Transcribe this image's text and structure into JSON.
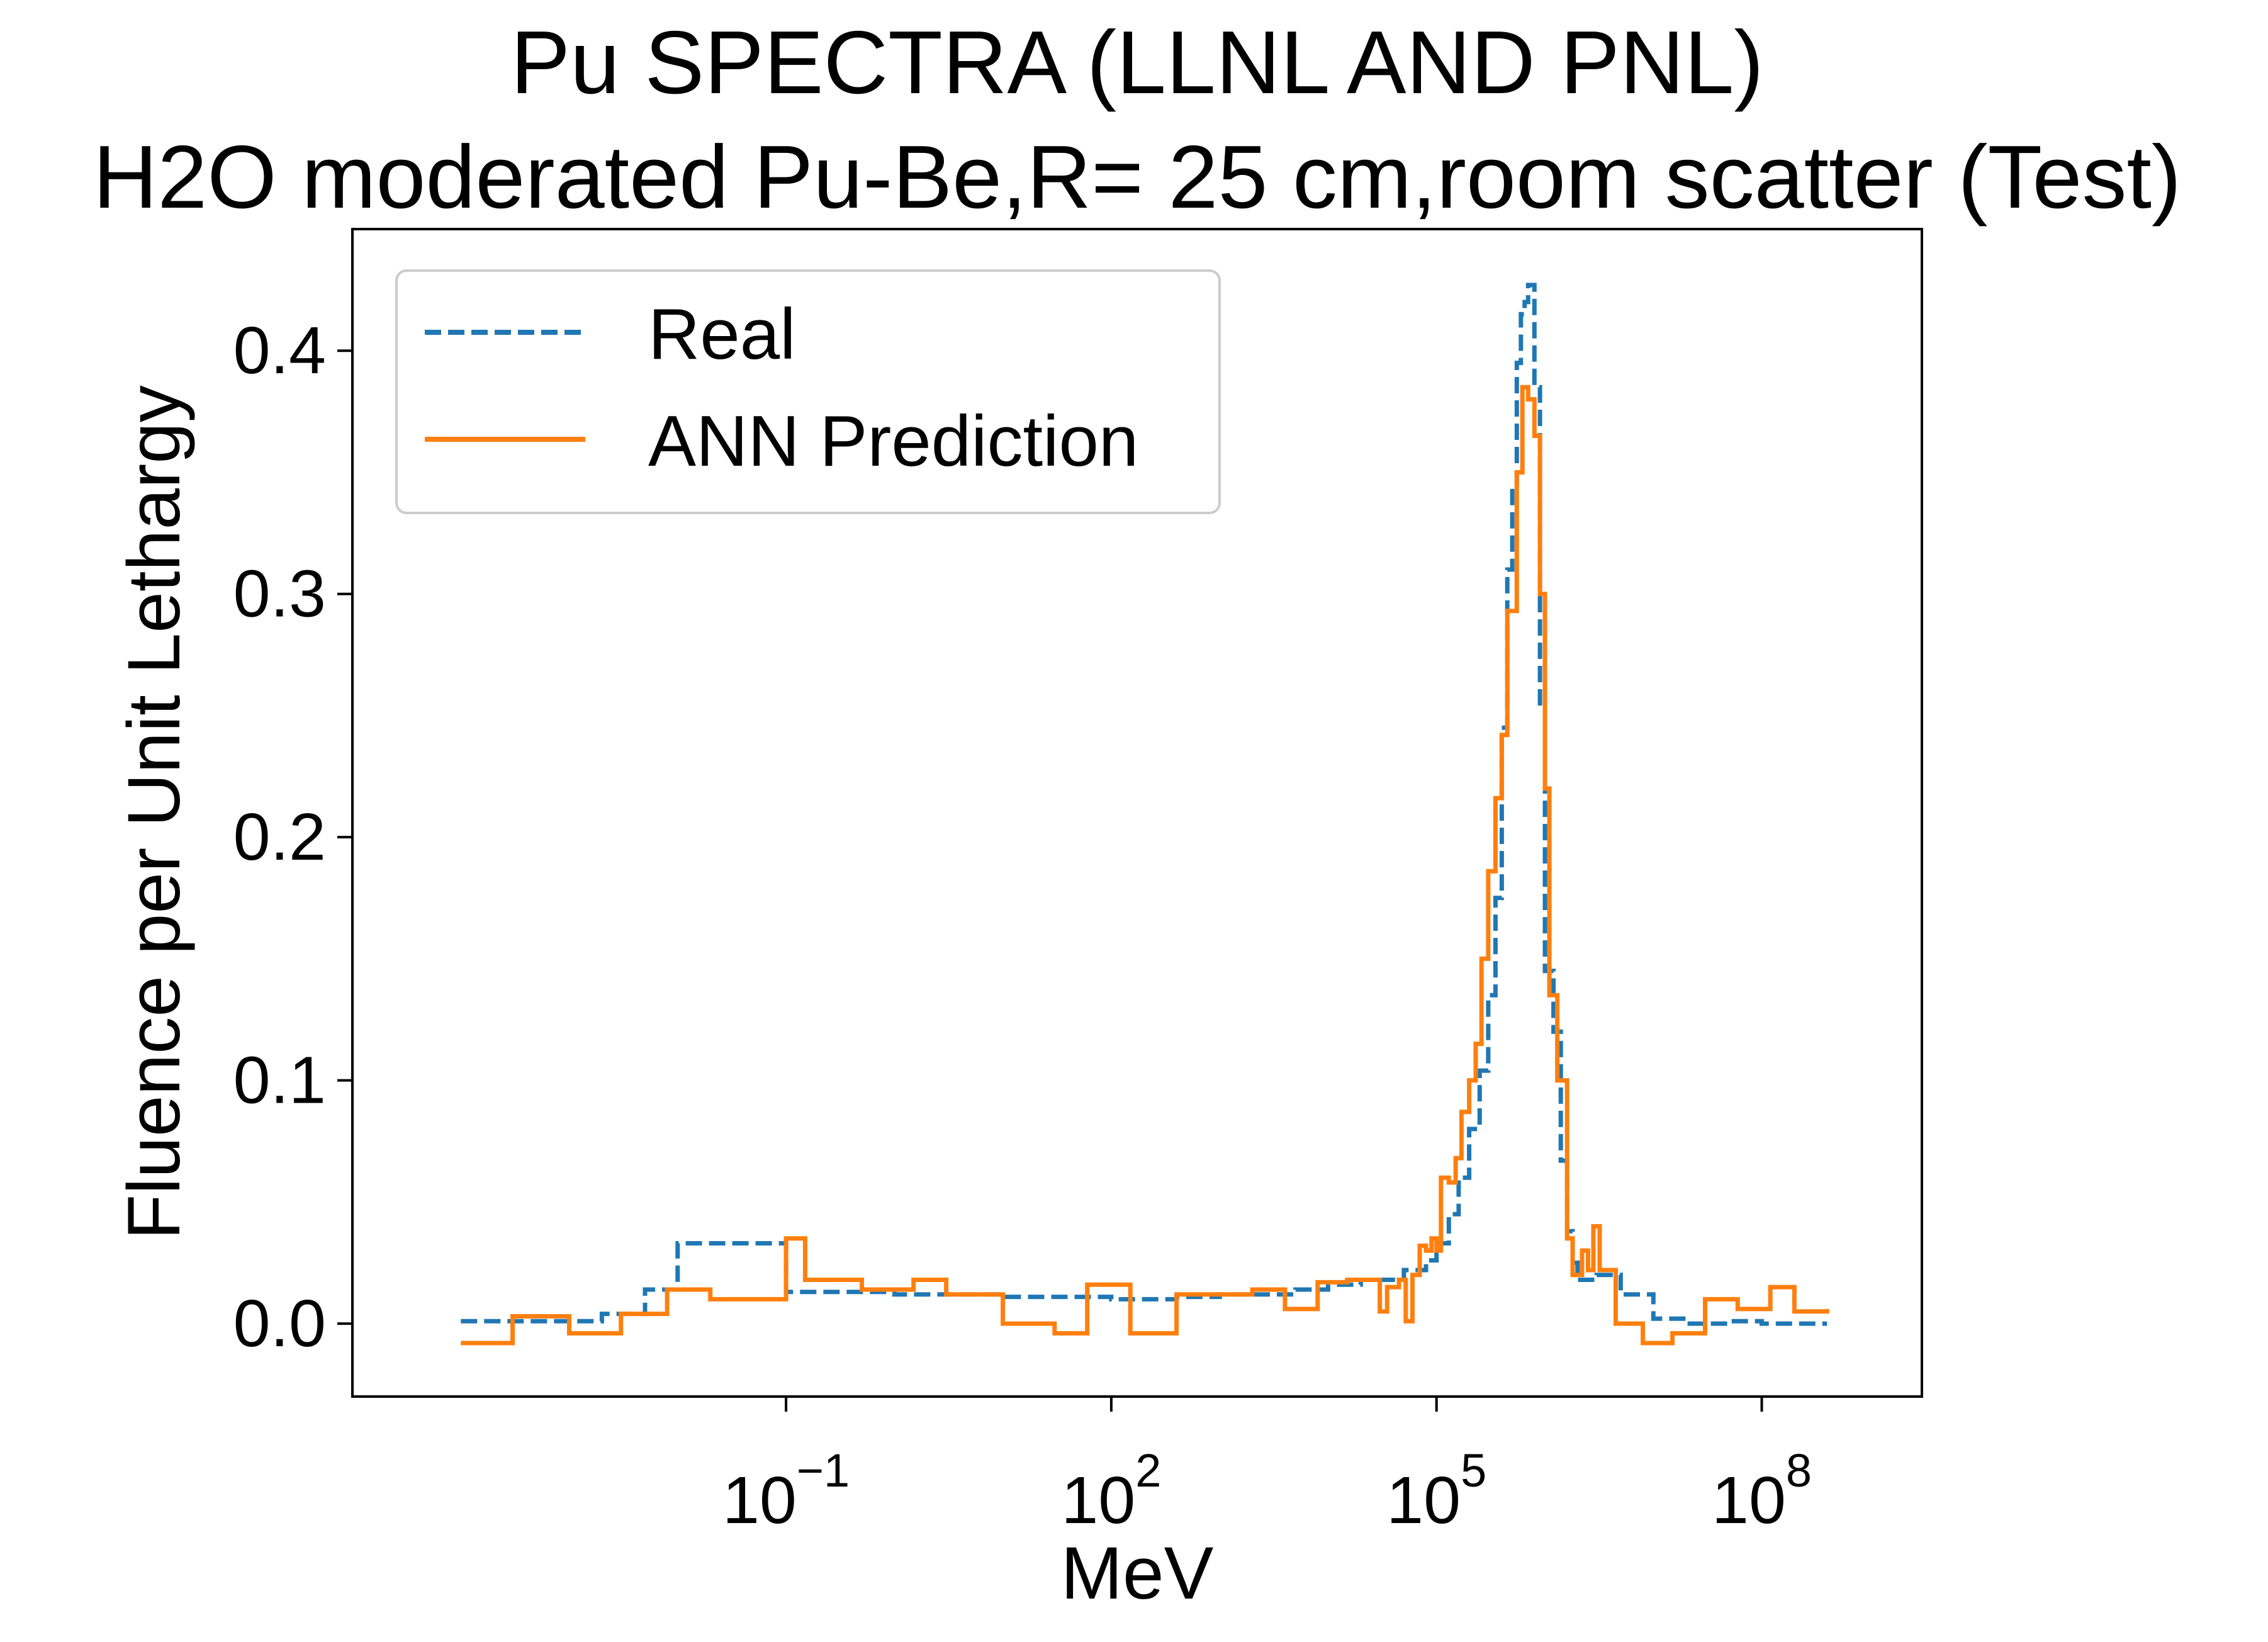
{
  "chart_data": {
    "type": "line",
    "title_line1": "Pu SPECTRA (LLNL AND PNL)",
    "title_line2": "H2O moderated Pu-Be,R= 25 cm,room scatter (Test)",
    "xlabel": "MeV",
    "ylabel": "Fluence per Unit Lethargy",
    "x_scale": "log",
    "xlim": [
      1e-05,
      3000000000
    ],
    "ylim": [
      -0.03,
      0.45
    ],
    "grid": false,
    "legend_placement": "upper-left",
    "x_ticks": [
      {
        "value": 0.1,
        "base": "10",
        "exp": "−1"
      },
      {
        "value": 100,
        "base": "10",
        "exp": "2"
      },
      {
        "value": 100000,
        "base": "10",
        "exp": "5"
      },
      {
        "value": 100000000,
        "base": "10",
        "exp": "8"
      }
    ],
    "y_ticks": [
      {
        "value": 0.0,
        "label": "0.0"
      },
      {
        "value": 0.1,
        "label": "0.1"
      },
      {
        "value": 0.2,
        "label": "0.2"
      },
      {
        "value": 0.3,
        "label": "0.3"
      },
      {
        "value": 0.4,
        "label": "0.4"
      }
    ],
    "series": [
      {
        "name": "Real",
        "color": "#1f77b4",
        "dash": "dashed",
        "points": [
          [
            0.0001,
            0.001
          ],
          [
            0.002,
            0.004
          ],
          [
            0.005,
            0.014
          ],
          [
            0.01,
            0.033
          ],
          [
            0.1,
            0.013
          ],
          [
            1,
            0.012
          ],
          [
            10,
            0.011
          ],
          [
            100,
            0.01
          ],
          [
            400,
            0.011
          ],
          [
            1000,
            0.012
          ],
          [
            5000,
            0.014
          ],
          [
            10000,
            0.016
          ],
          [
            20000,
            0.018
          ],
          [
            50000,
            0.022
          ],
          [
            80000,
            0.026
          ],
          [
            100000,
            0.033
          ],
          [
            130000,
            0.045
          ],
          [
            160000,
            0.06
          ],
          [
            200000,
            0.08
          ],
          [
            250000,
            0.104
          ],
          [
            300000,
            0.135
          ],
          [
            350000,
            0.175
          ],
          [
            400000,
            0.245
          ],
          [
            450000,
            0.31
          ],
          [
            500000,
            0.345
          ],
          [
            550000,
            0.395
          ],
          [
            600000,
            0.415
          ],
          [
            650000,
            0.42
          ],
          [
            700000,
            0.427
          ],
          [
            800000,
            0.385
          ],
          [
            900000,
            0.255
          ],
          [
            1000000,
            0.145
          ],
          [
            1200000,
            0.12
          ],
          [
            1400000,
            0.067
          ],
          [
            1600000,
            0.038
          ],
          [
            1800000,
            0.025
          ],
          [
            2000000,
            0.018
          ],
          [
            3000000,
            0.02
          ],
          [
            5000000,
            0.012
          ],
          [
            10000000,
            0.002
          ],
          [
            20000000,
            0.0
          ],
          [
            50000000,
            0.001
          ],
          [
            100000000,
            0.0
          ],
          [
            400000000,
            0.0
          ]
        ]
      },
      {
        "name": "ANN Prediction",
        "color": "#ff7f0e",
        "dash": "solid",
        "points": [
          [
            0.0001,
            -0.008
          ],
          [
            0.0003,
            0.003
          ],
          [
            0.001,
            -0.004
          ],
          [
            0.003,
            0.004
          ],
          [
            0.008,
            0.014
          ],
          [
            0.02,
            0.01
          ],
          [
            0.1,
            0.035
          ],
          [
            0.15,
            0.018
          ],
          [
            0.5,
            0.014
          ],
          [
            1.5,
            0.018
          ],
          [
            3,
            0.012
          ],
          [
            10,
            0.0
          ],
          [
            30,
            -0.004
          ],
          [
            60,
            0.016
          ],
          [
            150,
            -0.004
          ],
          [
            400,
            0.012
          ],
          [
            800,
            0.012
          ],
          [
            2000,
            0.014
          ],
          [
            4000,
            0.006
          ],
          [
            8000,
            0.017
          ],
          [
            15000,
            0.018
          ],
          [
            25000,
            0.018
          ],
          [
            30000,
            0.005
          ],
          [
            35000,
            0.015
          ],
          [
            45000,
            0.018
          ],
          [
            52000,
            0.001
          ],
          [
            60000,
            0.02
          ],
          [
            70000,
            0.032
          ],
          [
            80000,
            0.03
          ],
          [
            90000,
            0.035
          ],
          [
            100000,
            0.03
          ],
          [
            110000,
            0.06
          ],
          [
            130000,
            0.058
          ],
          [
            150000,
            0.068
          ],
          [
            170000,
            0.087
          ],
          [
            200000,
            0.1
          ],
          [
            230000,
            0.115
          ],
          [
            260000,
            0.15
          ],
          [
            300000,
            0.186
          ],
          [
            350000,
            0.216
          ],
          [
            400000,
            0.242
          ],
          [
            450000,
            0.293
          ],
          [
            550000,
            0.35
          ],
          [
            620000,
            0.385
          ],
          [
            700000,
            0.38
          ],
          [
            800000,
            0.365
          ],
          [
            900000,
            0.3
          ],
          [
            1000000,
            0.22
          ],
          [
            1100000,
            0.135
          ],
          [
            1300000,
            0.1
          ],
          [
            1600000,
            0.035
          ],
          [
            1800000,
            0.02
          ],
          [
            2200000,
            0.03
          ],
          [
            2500000,
            0.022
          ],
          [
            2800000,
            0.04
          ],
          [
            3200000,
            0.022
          ],
          [
            4500000,
            0.0
          ],
          [
            8000000,
            -0.008
          ],
          [
            15000000,
            -0.004
          ],
          [
            30000000,
            0.01
          ],
          [
            60000000,
            0.006
          ],
          [
            120000000,
            0.015
          ],
          [
            200000000,
            0.005
          ],
          [
            400000000,
            0.006
          ]
        ]
      }
    ]
  }
}
